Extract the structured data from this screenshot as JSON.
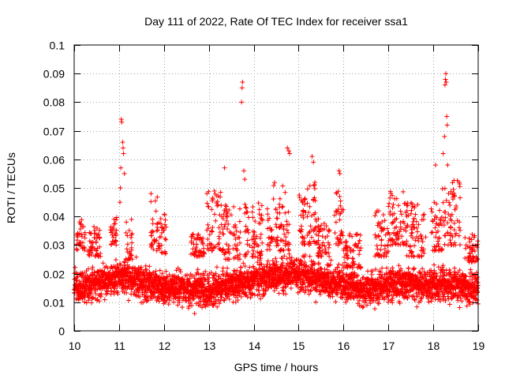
{
  "chart_data": {
    "type": "scatter",
    "title": "Day 111 of 2022, Rate Of TEC Index for receiver ssa1",
    "xlabel": "GPS time / hours",
    "ylabel": "ROTI / TECUs",
    "xlim": [
      10,
      19
    ],
    "ylim": [
      0,
      0.1
    ],
    "grid": true,
    "marker": "+",
    "marker_color": "#ff0000",
    "xticks": [
      10,
      11,
      12,
      13,
      14,
      15,
      16,
      17,
      18,
      19
    ],
    "xtick_labels": [
      "10",
      "11",
      "12",
      "13",
      "14",
      "15",
      "16",
      "17",
      "18",
      "19"
    ],
    "yticks": [
      0,
      0.01,
      0.02,
      0.03,
      0.04,
      0.05,
      0.06,
      0.07,
      0.08,
      0.09,
      0.1
    ],
    "ytick_labels": [
      "0",
      "0.01",
      "0.02",
      "0.03",
      "0.04",
      "0.05",
      "0.06",
      "0.07",
      "0.08",
      "0.09",
      "0.1"
    ],
    "series": [
      {
        "name": "ROTI",
        "sampling_interval_hours": 0.0025,
        "baseline_profile": [
          [
            10.0,
            0.015
          ],
          [
            10.5,
            0.016
          ],
          [
            11.0,
            0.019
          ],
          [
            11.5,
            0.017
          ],
          [
            12.0,
            0.015
          ],
          [
            12.5,
            0.015
          ],
          [
            13.0,
            0.014
          ],
          [
            13.5,
            0.016
          ],
          [
            14.0,
            0.018
          ],
          [
            14.5,
            0.019
          ],
          [
            15.0,
            0.02
          ],
          [
            15.5,
            0.018
          ],
          [
            16.0,
            0.016
          ],
          [
            16.5,
            0.014
          ],
          [
            17.0,
            0.016
          ],
          [
            17.5,
            0.017
          ],
          [
            18.0,
            0.016
          ],
          [
            18.5,
            0.016
          ],
          [
            19.0,
            0.015
          ]
        ],
        "spread": 0.0055,
        "range": [
          0.003,
          0.026
        ],
        "enhancements": [
          {
            "x": [
              10.05,
              10.25
            ],
            "y": [
              0.028,
              0.04
            ]
          },
          {
            "x": [
              10.3,
              10.6
            ],
            "y": [
              0.026,
              0.037
            ]
          },
          {
            "x": [
              10.8,
              10.95
            ],
            "y": [
              0.03,
              0.042
            ]
          },
          {
            "x": [
              11.15,
              11.3
            ],
            "y": [
              0.025,
              0.04
            ]
          },
          {
            "x": [
              11.7,
              11.9
            ],
            "y": [
              0.028,
              0.048
            ]
          },
          {
            "x": [
              11.9,
              12.05
            ],
            "y": [
              0.027,
              0.042
            ]
          },
          {
            "x": [
              12.6,
              12.9
            ],
            "y": [
              0.026,
              0.034
            ]
          },
          {
            "x": [
              12.95,
              13.3
            ],
            "y": [
              0.028,
              0.049
            ]
          },
          {
            "x": [
              13.3,
              13.7
            ],
            "y": [
              0.025,
              0.045
            ]
          },
          {
            "x": [
              13.8,
              14.2
            ],
            "y": [
              0.026,
              0.045
            ]
          },
          {
            "x": [
              14.3,
              14.8
            ],
            "y": [
              0.028,
              0.052
            ]
          },
          {
            "x": [
              15.0,
              15.4
            ],
            "y": [
              0.03,
              0.052
            ]
          },
          {
            "x": [
              15.4,
              15.7
            ],
            "y": [
              0.026,
              0.04
            ]
          },
          {
            "x": [
              15.8,
              16.0
            ],
            "y": [
              0.03,
              0.049
            ]
          },
          {
            "x": [
              16.0,
              16.4
            ],
            "y": [
              0.022,
              0.034
            ]
          },
          {
            "x": [
              16.7,
              17.0
            ],
            "y": [
              0.026,
              0.042
            ]
          },
          {
            "x": [
              17.0,
              17.4
            ],
            "y": [
              0.03,
              0.049
            ]
          },
          {
            "x": [
              17.4,
              17.85
            ],
            "y": [
              0.026,
              0.045
            ]
          },
          {
            "x": [
              17.95,
              18.2
            ],
            "y": [
              0.028,
              0.045
            ]
          },
          {
            "x": [
              18.2,
              18.6
            ],
            "y": [
              0.03,
              0.053
            ]
          },
          {
            "x": [
              18.7,
              19.0
            ],
            "y": [
              0.024,
              0.034
            ]
          }
        ],
        "spikes": [
          {
            "x": 11.05,
            "y": 0.074
          },
          {
            "x": 11.06,
            "y": 0.073
          },
          {
            "x": 11.08,
            "y": 0.066
          },
          {
            "x": 11.09,
            "y": 0.064
          },
          {
            "x": 11.1,
            "y": 0.062
          },
          {
            "x": 11.04,
            "y": 0.057
          },
          {
            "x": 11.12,
            "y": 0.055
          },
          {
            "x": 11.03,
            "y": 0.05
          },
          {
            "x": 11.02,
            "y": 0.045
          },
          {
            "x": 13.75,
            "y": 0.087
          },
          {
            "x": 13.74,
            "y": 0.085
          },
          {
            "x": 13.73,
            "y": 0.08
          },
          {
            "x": 13.35,
            "y": 0.057
          },
          {
            "x": 13.78,
            "y": 0.056
          },
          {
            "x": 13.8,
            "y": 0.053
          },
          {
            "x": 14.75,
            "y": 0.064
          },
          {
            "x": 14.78,
            "y": 0.063
          },
          {
            "x": 14.8,
            "y": 0.062
          },
          {
            "x": 15.3,
            "y": 0.061
          },
          {
            "x": 15.33,
            "y": 0.059
          },
          {
            "x": 15.9,
            "y": 0.056
          },
          {
            "x": 15.92,
            "y": 0.055
          },
          {
            "x": 18.22,
            "y": 0.062
          },
          {
            "x": 18.28,
            "y": 0.09
          },
          {
            "x": 18.27,
            "y": 0.088
          },
          {
            "x": 18.29,
            "y": 0.087
          },
          {
            "x": 18.26,
            "y": 0.086
          },
          {
            "x": 18.3,
            "y": 0.075
          },
          {
            "x": 18.31,
            "y": 0.072
          },
          {
            "x": 18.25,
            "y": 0.068
          },
          {
            "x": 18.32,
            "y": 0.058
          },
          {
            "x": 18.05,
            "y": 0.058
          }
        ]
      }
    ]
  }
}
